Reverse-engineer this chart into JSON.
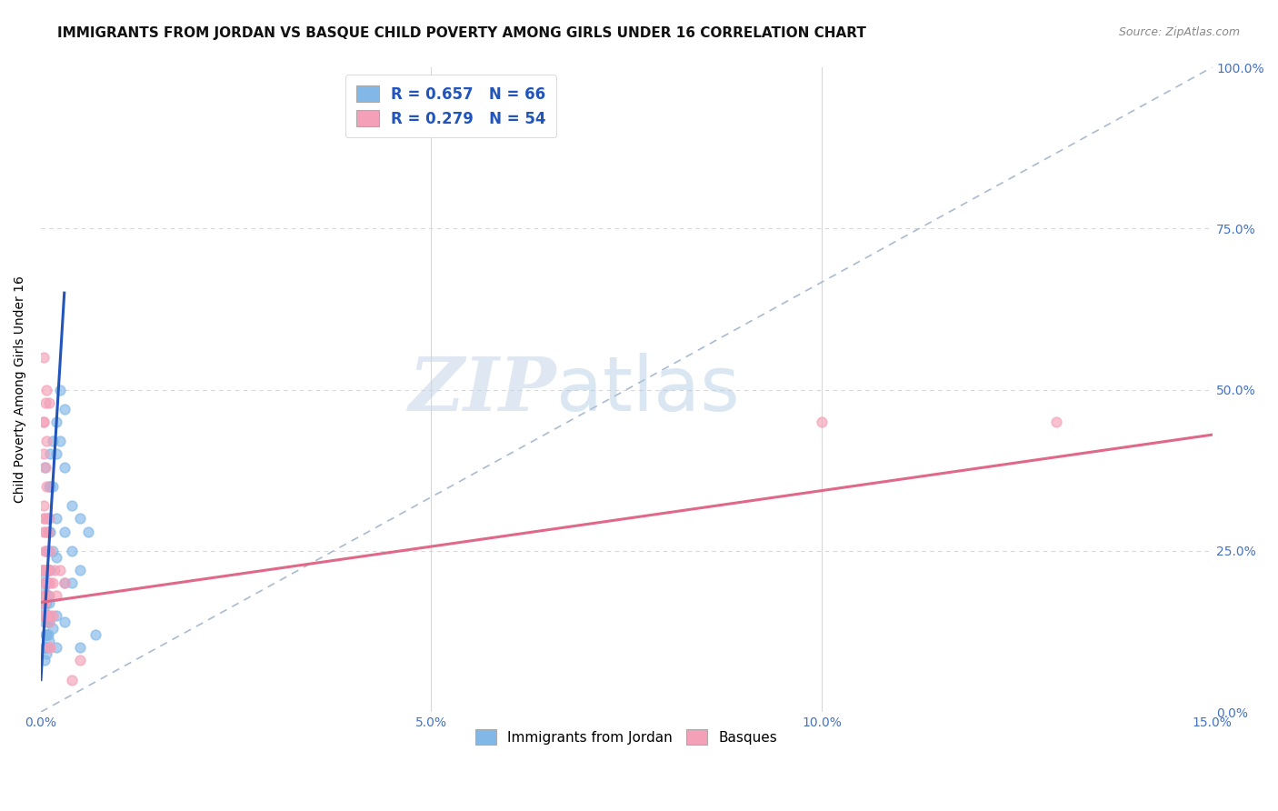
{
  "title": "IMMIGRANTS FROM JORDAN VS BASQUE CHILD POVERTY AMONG GIRLS UNDER 16 CORRELATION CHART",
  "source": "Source: ZipAtlas.com",
  "ylabel": "Child Poverty Among Girls Under 16",
  "legend1_label": "R = 0.657   N = 66",
  "legend2_label": "R = 0.279   N = 54",
  "watermark_zip": "ZIP",
  "watermark_atlas": "atlas",
  "blue_color": "#82b8e8",
  "pink_color": "#f4a0b8",
  "blue_line_color": "#2255bb",
  "pink_line_color": "#e06888",
  "diagonal_line_color": "#aabbd0",
  "grid_color": "#d8d8d8",
  "background_color": "#ffffff",
  "tick_label_color": "#4472c4",
  "title_fontsize": 11,
  "source_fontsize": 9,
  "blue_scatter": [
    [
      0.0002,
      0.17
    ],
    [
      0.0003,
      0.19
    ],
    [
      0.0004,
      0.16
    ],
    [
      0.0004,
      0.21
    ],
    [
      0.0005,
      0.38
    ],
    [
      0.0005,
      0.14
    ],
    [
      0.0005,
      0.1
    ],
    [
      0.0005,
      0.08
    ],
    [
      0.0006,
      0.2
    ],
    [
      0.0006,
      0.18
    ],
    [
      0.0006,
      0.15
    ],
    [
      0.0006,
      0.12
    ],
    [
      0.0006,
      0.1
    ],
    [
      0.0007,
      0.25
    ],
    [
      0.0007,
      0.22
    ],
    [
      0.0007,
      0.2
    ],
    [
      0.0007,
      0.17
    ],
    [
      0.0007,
      0.15
    ],
    [
      0.0007,
      0.12
    ],
    [
      0.0007,
      0.09
    ],
    [
      0.0008,
      0.14
    ],
    [
      0.0008,
      0.12
    ],
    [
      0.0008,
      0.1
    ],
    [
      0.0009,
      0.3
    ],
    [
      0.0009,
      0.28
    ],
    [
      0.0009,
      0.25
    ],
    [
      0.0009,
      0.22
    ],
    [
      0.0009,
      0.18
    ],
    [
      0.0009,
      0.15
    ],
    [
      0.0009,
      0.12
    ],
    [
      0.001,
      0.35
    ],
    [
      0.001,
      0.28
    ],
    [
      0.001,
      0.22
    ],
    [
      0.001,
      0.17
    ],
    [
      0.001,
      0.14
    ],
    [
      0.001,
      0.11
    ],
    [
      0.0012,
      0.4
    ],
    [
      0.0012,
      0.35
    ],
    [
      0.0012,
      0.28
    ],
    [
      0.0012,
      0.22
    ],
    [
      0.0015,
      0.42
    ],
    [
      0.0015,
      0.35
    ],
    [
      0.0015,
      0.25
    ],
    [
      0.0015,
      0.13
    ],
    [
      0.002,
      0.45
    ],
    [
      0.002,
      0.4
    ],
    [
      0.002,
      0.3
    ],
    [
      0.002,
      0.24
    ],
    [
      0.002,
      0.15
    ],
    [
      0.002,
      0.1
    ],
    [
      0.0025,
      0.5
    ],
    [
      0.0025,
      0.42
    ],
    [
      0.003,
      0.47
    ],
    [
      0.003,
      0.38
    ],
    [
      0.003,
      0.28
    ],
    [
      0.003,
      0.2
    ],
    [
      0.003,
      0.14
    ],
    [
      0.004,
      0.32
    ],
    [
      0.004,
      0.25
    ],
    [
      0.004,
      0.2
    ],
    [
      0.005,
      0.3
    ],
    [
      0.005,
      0.22
    ],
    [
      0.005,
      0.1
    ],
    [
      0.006,
      0.28
    ],
    [
      0.007,
      0.12
    ],
    [
      0.0001,
      0.22
    ]
  ],
  "pink_scatter": [
    [
      0.0002,
      0.17
    ],
    [
      0.0002,
      0.15
    ],
    [
      0.0003,
      0.55
    ],
    [
      0.0003,
      0.45
    ],
    [
      0.0003,
      0.4
    ],
    [
      0.0003,
      0.3
    ],
    [
      0.0003,
      0.22
    ],
    [
      0.0004,
      0.45
    ],
    [
      0.0004,
      0.32
    ],
    [
      0.0004,
      0.28
    ],
    [
      0.0004,
      0.22
    ],
    [
      0.0004,
      0.18
    ],
    [
      0.0004,
      0.15
    ],
    [
      0.0005,
      0.3
    ],
    [
      0.0005,
      0.25
    ],
    [
      0.0005,
      0.2
    ],
    [
      0.0005,
      0.17
    ],
    [
      0.0005,
      0.15
    ],
    [
      0.0006,
      0.48
    ],
    [
      0.0006,
      0.38
    ],
    [
      0.0006,
      0.28
    ],
    [
      0.0006,
      0.22
    ],
    [
      0.0006,
      0.18
    ],
    [
      0.0006,
      0.15
    ],
    [
      0.0007,
      0.5
    ],
    [
      0.0007,
      0.42
    ],
    [
      0.0007,
      0.35
    ],
    [
      0.0007,
      0.25
    ],
    [
      0.0007,
      0.2
    ],
    [
      0.0007,
      0.15
    ],
    [
      0.0008,
      0.3
    ],
    [
      0.0008,
      0.22
    ],
    [
      0.0009,
      0.28
    ],
    [
      0.0009,
      0.2
    ],
    [
      0.001,
      0.48
    ],
    [
      0.001,
      0.3
    ],
    [
      0.001,
      0.22
    ],
    [
      0.001,
      0.18
    ],
    [
      0.001,
      0.14
    ],
    [
      0.001,
      0.1
    ],
    [
      0.0012,
      0.25
    ],
    [
      0.0012,
      0.2
    ],
    [
      0.0012,
      0.15
    ],
    [
      0.0012,
      0.1
    ],
    [
      0.0015,
      0.2
    ],
    [
      0.0015,
      0.15
    ],
    [
      0.0018,
      0.22
    ],
    [
      0.002,
      0.18
    ],
    [
      0.0025,
      0.22
    ],
    [
      0.003,
      0.2
    ],
    [
      0.004,
      0.05
    ],
    [
      0.005,
      0.08
    ],
    [
      0.1,
      0.45
    ],
    [
      0.13,
      0.45
    ]
  ],
  "blue_line": [
    [
      0.0,
      0.05
    ],
    [
      0.003,
      0.65
    ]
  ],
  "pink_line": [
    [
      0.0,
      0.17
    ],
    [
      0.15,
      0.43
    ]
  ],
  "xlim": [
    0.0,
    0.15
  ],
  "ylim": [
    0.0,
    1.0
  ],
  "xtick_vals": [
    0.0,
    0.05,
    0.1,
    0.15
  ],
  "xtick_labels": [
    "0.0%",
    "5.0%",
    "10.0%",
    "15.0%"
  ],
  "ytick_vals": [
    0.0,
    0.25,
    0.5,
    0.75,
    1.0
  ],
  "ytick_labels": [
    "0.0%",
    "25.0%",
    "50.0%",
    "75.0%",
    "100.0%"
  ]
}
